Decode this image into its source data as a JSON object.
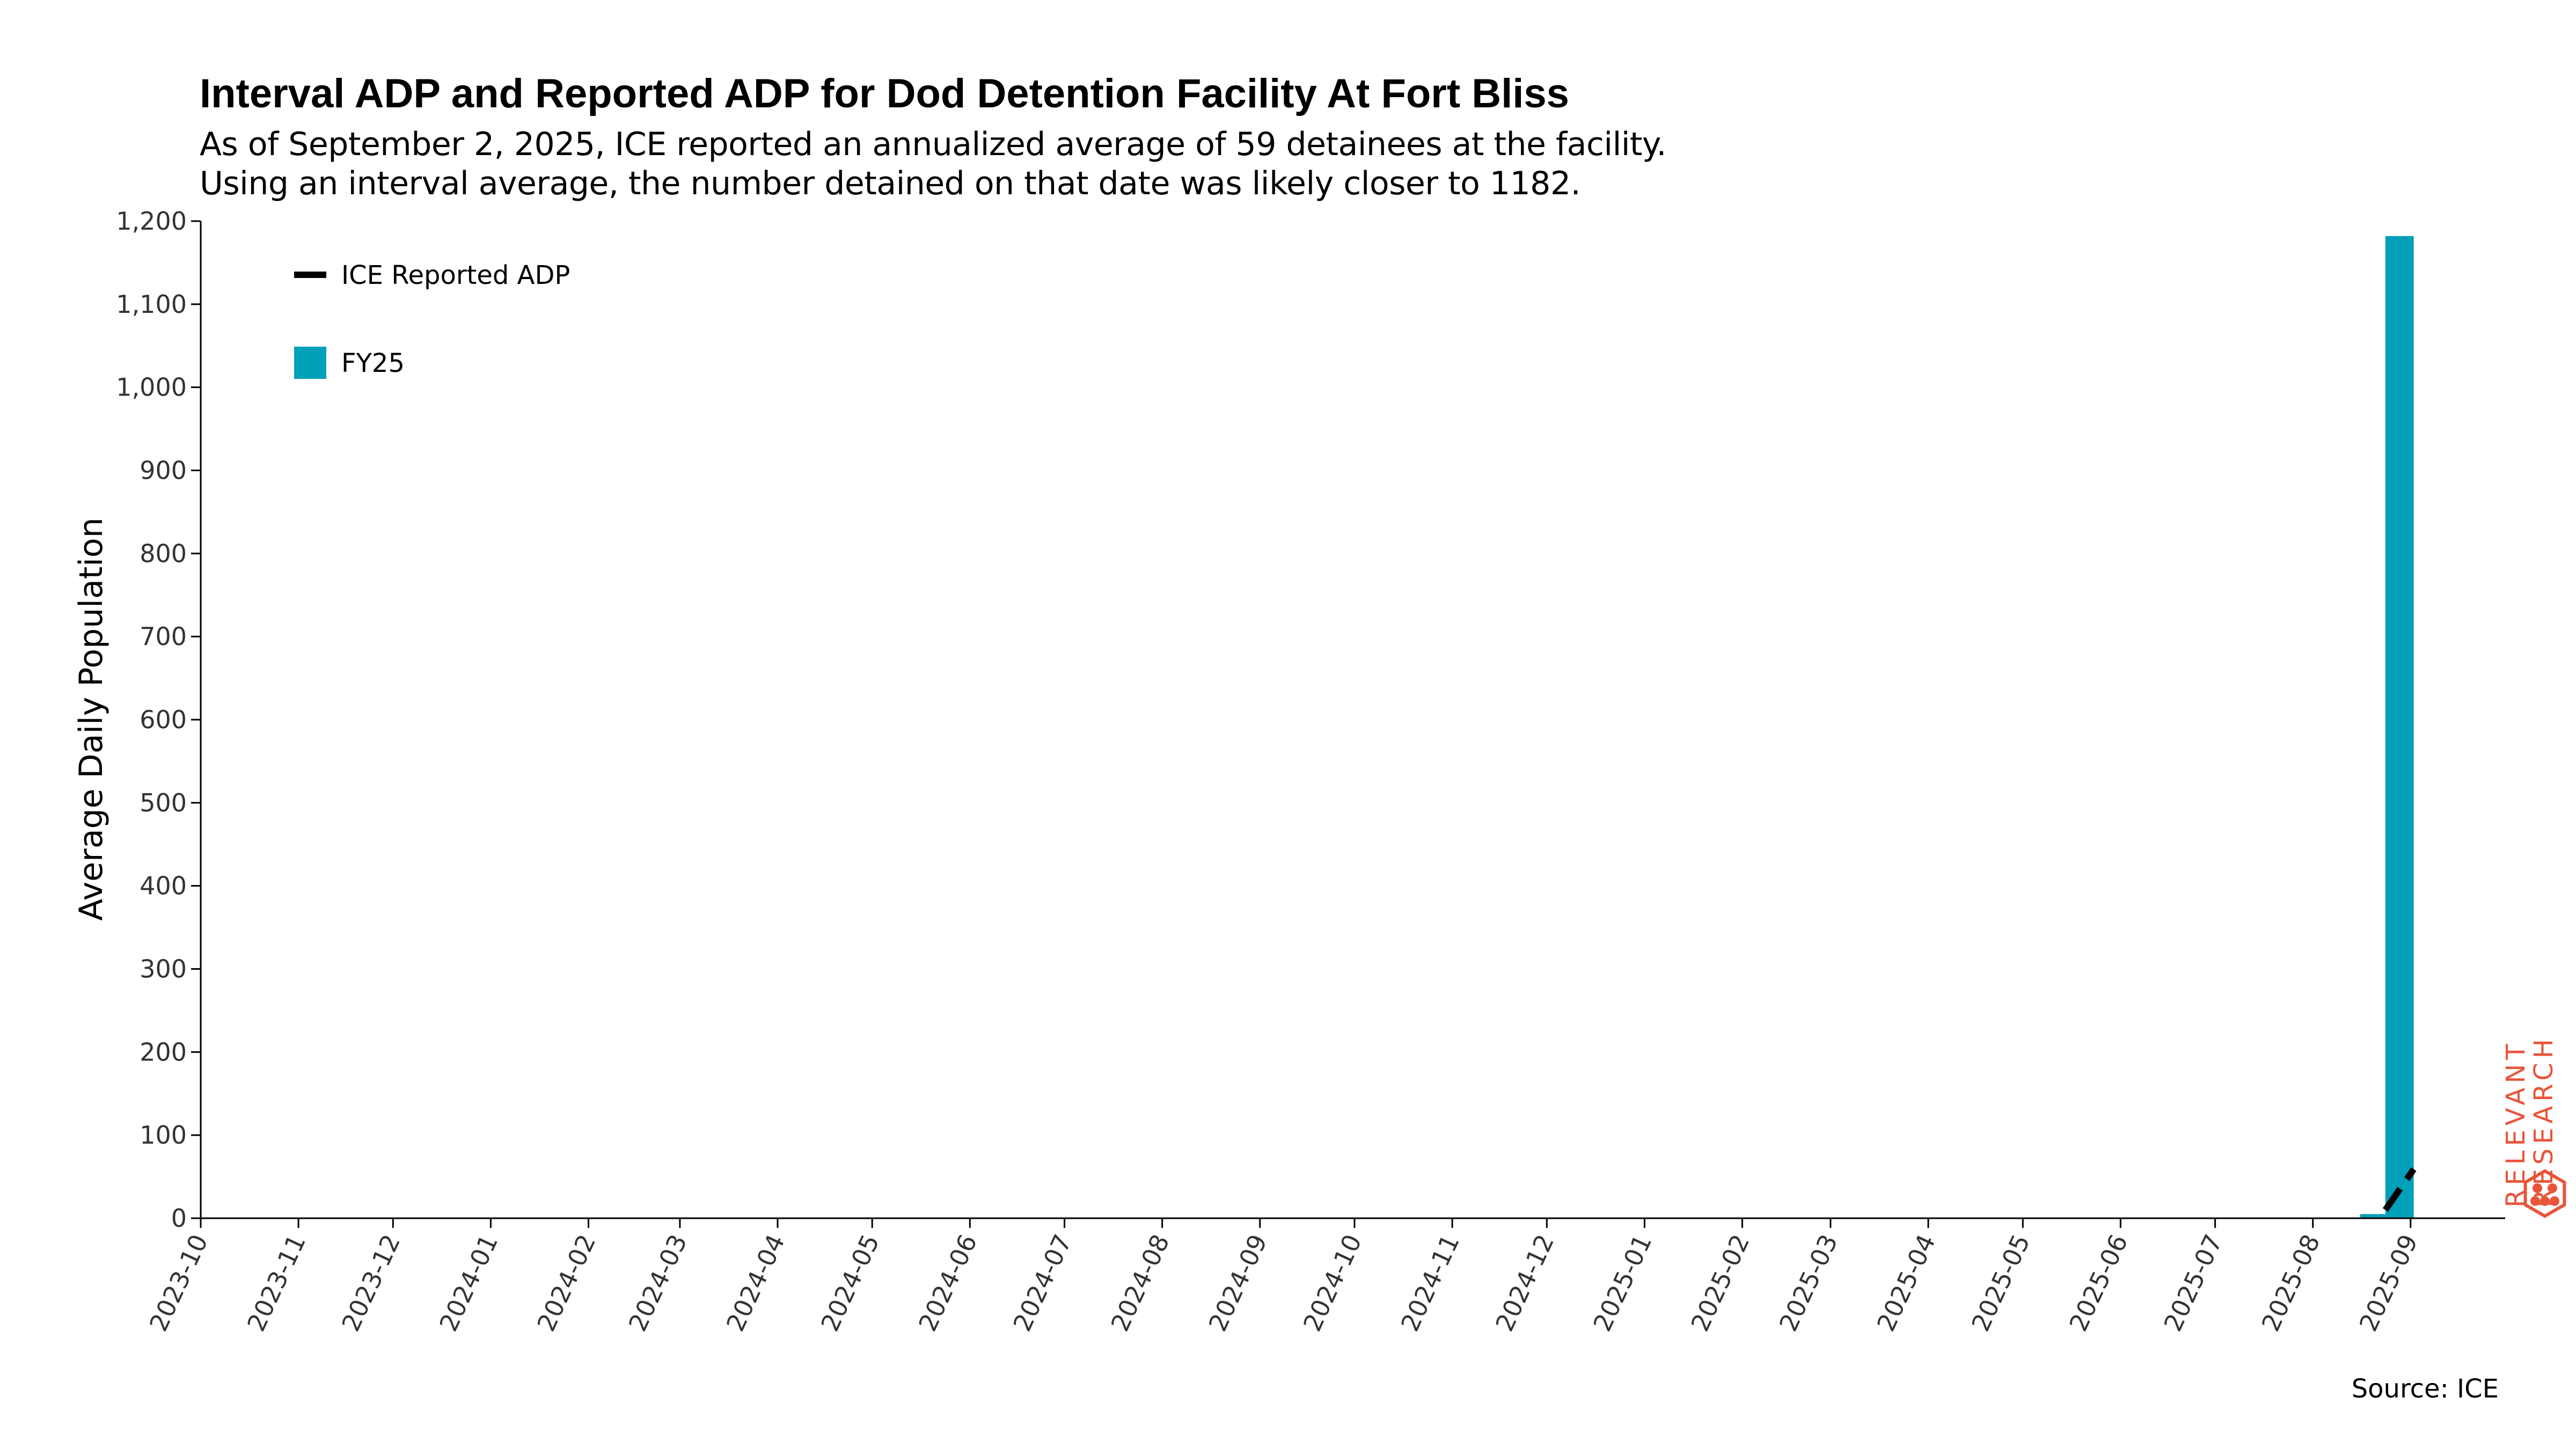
{
  "title": "Interval ADP and Reported ADP for Dod Detention Facility At Fort Bliss",
  "subtitle_lines": [
    "As of September 2, 2025, ICE reported an annualized average of 59 detainees at the facility.",
    "Using an interval average, the number detained on that date was likely closer to 1182."
  ],
  "source": "Source: ICE",
  "logo": {
    "line1": "RELEVANT",
    "line2": "RESEARCH",
    "color": "#e8553a"
  },
  "colors": {
    "bar": "#00a0b8",
    "line": "#000000",
    "axis": "#000000",
    "tick_text": "#333333"
  },
  "chart_data": {
    "type": "bar",
    "title": "Interval ADP and Reported ADP for Dod Detention Facility At Fort Bliss",
    "xlabel": "",
    "ylabel": "Average Daily Population",
    "ylim": [
      0,
      1200
    ],
    "yticks": [
      0,
      100,
      200,
      300,
      400,
      500,
      600,
      700,
      800,
      900,
      1000,
      1100,
      1200
    ],
    "ytick_labels": [
      "0",
      "100",
      "200",
      "300",
      "400",
      "500",
      "600",
      "700",
      "800",
      "900",
      "1,000",
      "1,100",
      "1,200"
    ],
    "x_dates": [
      "2023-10",
      "2023-11",
      "2023-12",
      "2024-01",
      "2024-02",
      "2024-03",
      "2024-04",
      "2024-05",
      "2024-06",
      "2024-07",
      "2024-08",
      "2024-09",
      "2024-10",
      "2024-11",
      "2024-12",
      "2025-01",
      "2025-02",
      "2025-03",
      "2025-04",
      "2025-05",
      "2025-06",
      "2025-07",
      "2025-08",
      "2025-09"
    ],
    "xlim": [
      "2023-10-01",
      "2025-10-01"
    ],
    "legend_position": "top-left",
    "legend": [
      {
        "name": "ICE Reported ADP",
        "kind": "line"
      },
      {
        "name": "FY25",
        "kind": "bar"
      }
    ],
    "bars": [
      {
        "series": "FY25",
        "start": "2025-08-16",
        "end": "2025-08-24",
        "value": 5
      },
      {
        "series": "FY25",
        "start": "2025-08-24",
        "end": "2025-09-02",
        "value": 1182
      }
    ],
    "line": {
      "name": "ICE Reported ADP",
      "style": "dashed",
      "points": [
        {
          "date": "2025-08-24",
          "value": 10
        },
        {
          "date": "2025-09-02",
          "value": 59
        }
      ]
    }
  }
}
